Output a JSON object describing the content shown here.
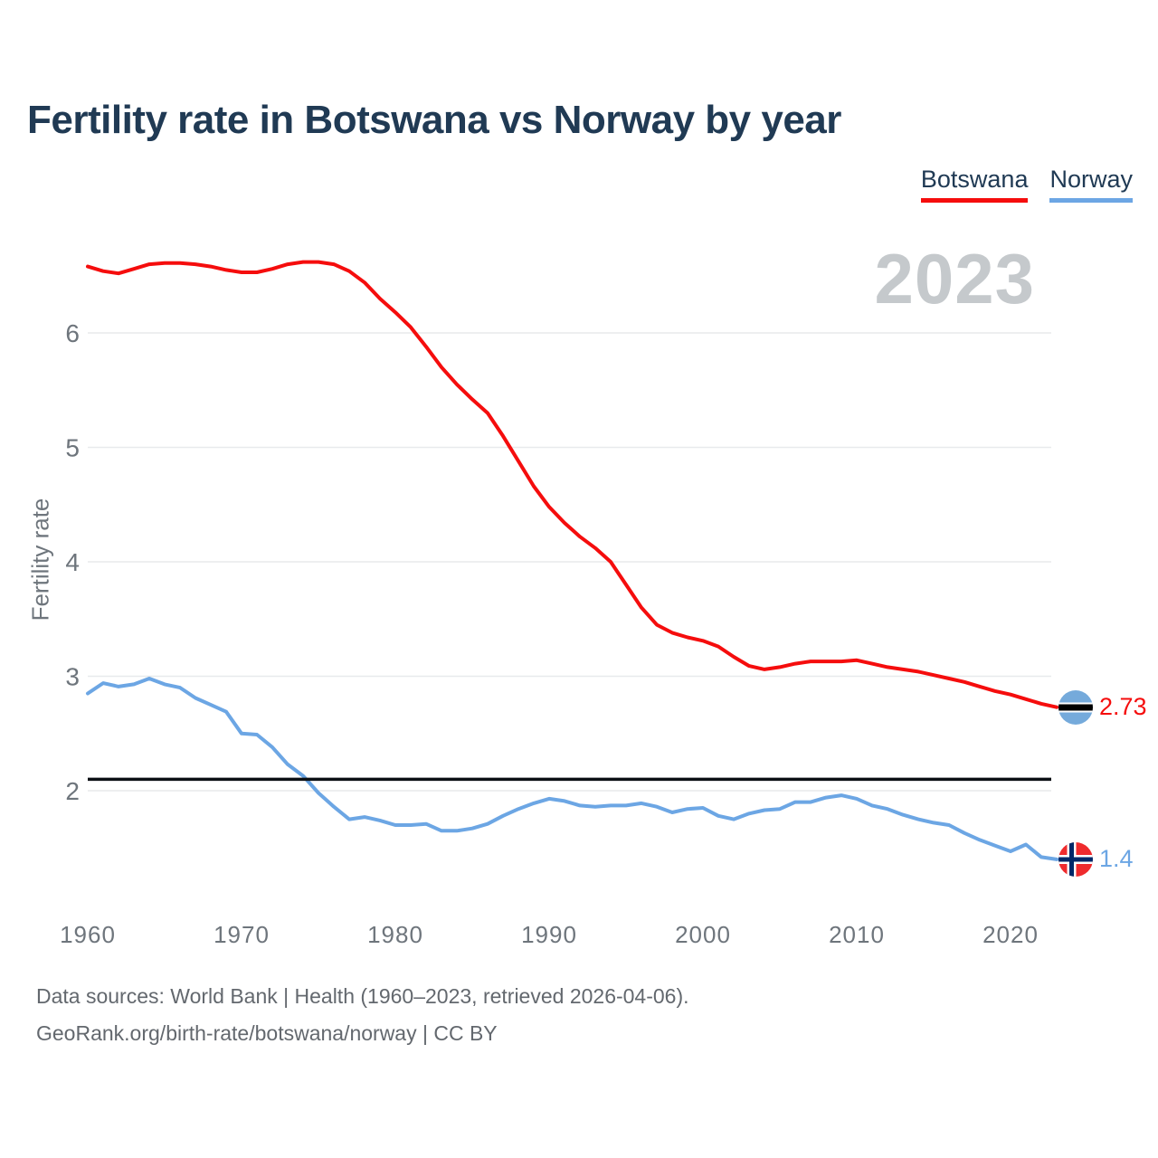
{
  "header": {
    "title": "Fertility rate in Botswana vs Norway by year"
  },
  "legend": [
    {
      "label": "Botswana",
      "color": "#f50d0d"
    },
    {
      "label": "Norway",
      "color": "#6ca6e4"
    }
  ],
  "watermark": "2023",
  "y_axis": {
    "label": "Fertility rate",
    "ticks": [
      2,
      3,
      4,
      5,
      6
    ]
  },
  "x_axis": {
    "ticks": [
      1960,
      1970,
      1980,
      1990,
      2000,
      2010,
      2020
    ]
  },
  "reference_line": {
    "value": 2.1,
    "color": "#0b0f14"
  },
  "end_labels": [
    {
      "series": "Botswana",
      "value": "2.73"
    },
    {
      "series": "Norway",
      "value": "1.4"
    }
  ],
  "footer": {
    "line1": "Data sources: World Bank | Health (1960–2023, retrieved 2026-04-06).",
    "line2": "GeoRank.org/birth-rate/botswana/norway | CC BY"
  },
  "chart_data": {
    "type": "line",
    "title": "Fertility rate in Botswana vs Norway by year",
    "xlabel": "",
    "ylabel": "Fertility rate",
    "xlim": [
      1960,
      2023
    ],
    "ylim": [
      1.1,
      6.7
    ],
    "grid": "horizontal",
    "legend_position": "top-right",
    "annotations": {
      "replacement_level_line": 2.1,
      "watermark_year": "2023"
    },
    "x": [
      1960,
      1961,
      1962,
      1963,
      1964,
      1965,
      1966,
      1967,
      1968,
      1969,
      1970,
      1971,
      1972,
      1973,
      1974,
      1975,
      1976,
      1977,
      1978,
      1979,
      1980,
      1981,
      1982,
      1983,
      1984,
      1985,
      1986,
      1987,
      1988,
      1989,
      1990,
      1991,
      1992,
      1993,
      1994,
      1995,
      1996,
      1997,
      1998,
      1999,
      2000,
      2001,
      2002,
      2003,
      2004,
      2005,
      2006,
      2007,
      2008,
      2009,
      2010,
      2011,
      2012,
      2013,
      2014,
      2015,
      2016,
      2017,
      2018,
      2019,
      2020,
      2021,
      2022,
      2023
    ],
    "series": [
      {
        "name": "Botswana",
        "color": "#f50d0d",
        "values": [
          6.58,
          6.54,
          6.52,
          6.56,
          6.6,
          6.61,
          6.61,
          6.6,
          6.58,
          6.55,
          6.53,
          6.53,
          6.56,
          6.6,
          6.62,
          6.62,
          6.6,
          6.54,
          6.44,
          6.3,
          6.18,
          6.05,
          5.88,
          5.7,
          5.55,
          5.42,
          5.3,
          5.1,
          4.88,
          4.66,
          4.48,
          4.34,
          4.22,
          4.12,
          4.0,
          3.8,
          3.6,
          3.45,
          3.38,
          3.34,
          3.31,
          3.26,
          3.17,
          3.09,
          3.06,
          3.08,
          3.11,
          3.13,
          3.13,
          3.13,
          3.14,
          3.11,
          3.08,
          3.06,
          3.04,
          3.01,
          2.98,
          2.95,
          2.91,
          2.87,
          2.84,
          2.8,
          2.76,
          2.73
        ]
      },
      {
        "name": "Norway",
        "color": "#6ca6e4",
        "values": [
          2.85,
          2.94,
          2.91,
          2.93,
          2.98,
          2.93,
          2.9,
          2.81,
          2.75,
          2.69,
          2.5,
          2.49,
          2.38,
          2.23,
          2.13,
          1.98,
          1.86,
          1.75,
          1.77,
          1.74,
          1.7,
          1.7,
          1.71,
          1.65,
          1.65,
          1.67,
          1.71,
          1.78,
          1.84,
          1.89,
          1.93,
          1.91,
          1.87,
          1.86,
          1.87,
          1.87,
          1.89,
          1.86,
          1.81,
          1.84,
          1.85,
          1.78,
          1.75,
          1.8,
          1.83,
          1.84,
          1.9,
          1.9,
          1.94,
          1.96,
          1.93,
          1.87,
          1.84,
          1.79,
          1.75,
          1.72,
          1.7,
          1.63,
          1.57,
          1.52,
          1.47,
          1.53,
          1.42,
          1.4
        ]
      }
    ]
  }
}
